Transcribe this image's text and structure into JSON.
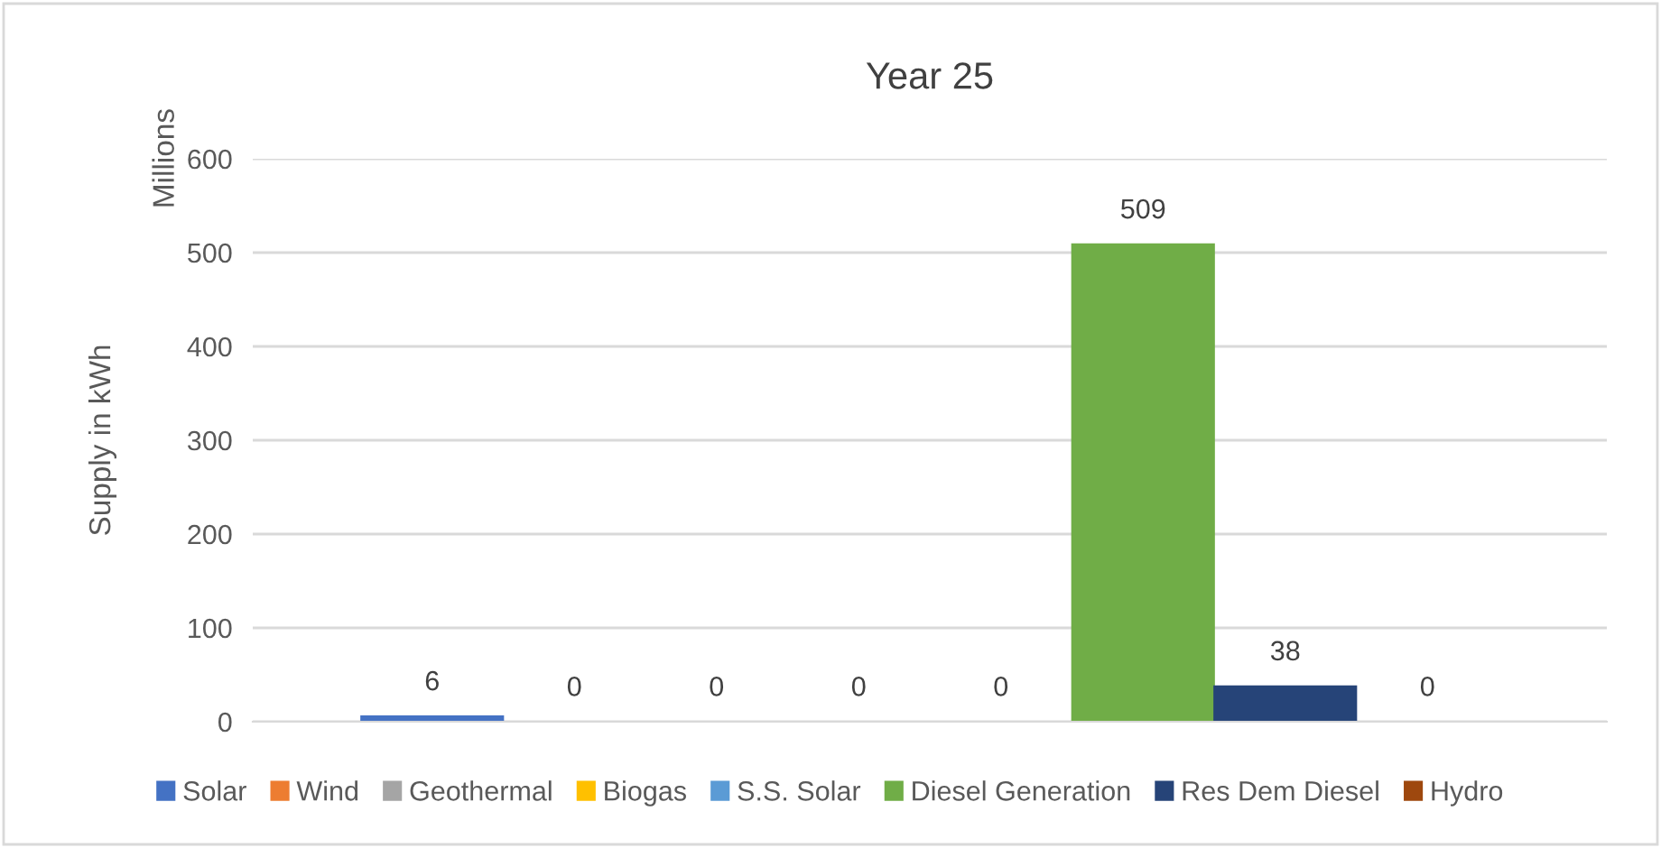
{
  "chart_data": {
    "type": "bar",
    "title": "Year 25",
    "ylabel": "Supply in kWh",
    "annotations": [
      "Millions"
    ],
    "categories": [
      null
    ],
    "series": [
      {
        "name": "Solar",
        "color": "#4472c4",
        "values": [
          6
        ]
      },
      {
        "name": "Wind",
        "color": "#ed7d31",
        "values": [
          0
        ]
      },
      {
        "name": "Geothermal",
        "color": "#a5a5a5",
        "values": [
          0
        ]
      },
      {
        "name": "Biogas",
        "color": "#ffc000",
        "values": [
          0
        ]
      },
      {
        "name": "S.S. Solar",
        "color": "#5b9bd5",
        "values": [
          0
        ]
      },
      {
        "name": "Diesel Generation",
        "color": "#70ad47",
        "values": [
          509
        ]
      },
      {
        "name": "Res Dem Diesel",
        "color": "#264478",
        "values": [
          38
        ]
      },
      {
        "name": "Hydro",
        "color": "#9e480e",
        "values": [
          0
        ]
      }
    ],
    "ylim": [
      0,
      600
    ],
    "yticks": [
      0,
      100,
      200,
      300,
      400,
      500,
      600
    ],
    "grid": "y",
    "legend": "bottom",
    "data_labels": true
  }
}
